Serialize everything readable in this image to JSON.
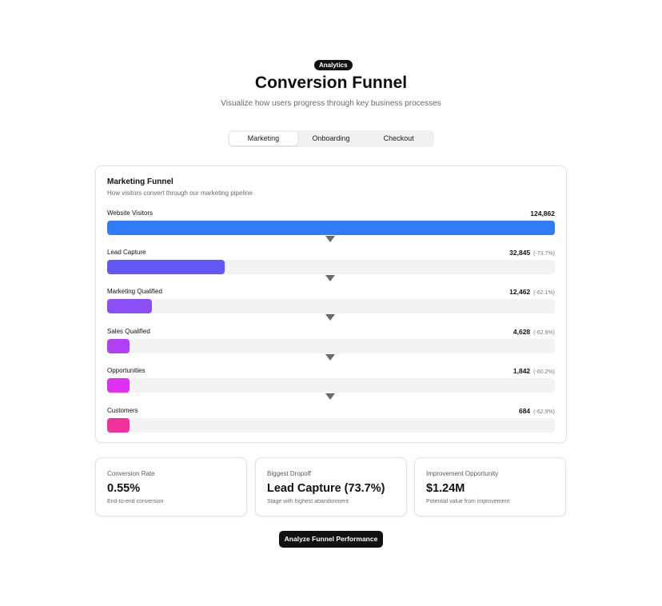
{
  "header": {
    "badge": "Analytics",
    "title": "Conversion Funnel",
    "subtitle": "Visualize how users progress through key business processes"
  },
  "tabs": [
    {
      "label": "Marketing",
      "active": true
    },
    {
      "label": "Onboarding",
      "active": false
    },
    {
      "label": "Checkout",
      "active": false
    }
  ],
  "funnel": {
    "title": "Marketing Funnel",
    "subtitle": "How visitors convert through our marketing pipeline",
    "stages": [
      {
        "name": "Website Visitors",
        "value": "124,862",
        "dropoff": "",
        "color": "#2f7cf6",
        "fill": 1.0
      },
      {
        "name": "Lead Capture",
        "value": "32,845",
        "dropoff": "(-73.7%)",
        "color": "#6158f5",
        "fill": 0.263
      },
      {
        "name": "Marketing Qualified",
        "value": "12,462",
        "dropoff": "(-62.1%)",
        "color": "#8a50f6",
        "fill": 0.1
      },
      {
        "name": "Sales Qualified",
        "value": "4,628",
        "dropoff": "(-62.9%)",
        "color": "#b13ff4",
        "fill": 0.05
      },
      {
        "name": "Opportunities",
        "value": "1,842",
        "dropoff": "(-60.2%)",
        "color": "#df2ff0",
        "fill": 0.05
      },
      {
        "name": "Customers",
        "value": "684",
        "dropoff": "(-62.9%)",
        "color": "#f1309c",
        "fill": 0.05
      }
    ]
  },
  "metrics": [
    {
      "label": "Conversion Rate",
      "value": "0.55%",
      "desc": "End-to-end conversion"
    },
    {
      "label": "Biggest Dropoff",
      "value": "Lead Capture (73.7%)",
      "desc": "Stage with highest abandonment"
    },
    {
      "label": "Improvement Opportunity",
      "value": "$1.24M",
      "desc": "Potential value from improvement"
    }
  ],
  "cta": {
    "label": "Analyze Funnel Performance"
  }
}
